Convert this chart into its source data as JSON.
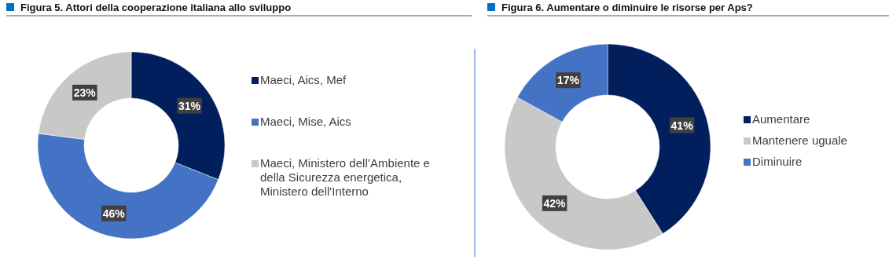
{
  "chart_data": [
    {
      "type": "donut",
      "title": "Figura 5. Attori della cooperazione italiana allo sviluppo",
      "categories": [
        "Maeci, Aics, Mef",
        "Maeci, Mise, Aics",
        "Maeci, Ministero dell’Ambiente e della Sicurezza energetica, Ministero dell'Interno"
      ],
      "values": [
        31,
        46,
        23
      ],
      "value_labels": [
        "31%",
        "46%",
        "23%"
      ],
      "colors": [
        "#001f5c",
        "#4472c4",
        "#c8c8c8"
      ],
      "legend": "right"
    },
    {
      "type": "donut",
      "title": "Figura 6. Aumentare o diminuire le risorse per Aps?",
      "categories": [
        "Aumentare",
        "Mantenere uguale",
        "Diminuire"
      ],
      "values": [
        41,
        42,
        17
      ],
      "value_labels": [
        "41%",
        "42%",
        "17%"
      ],
      "colors": [
        "#001f5c",
        "#c8c8c8",
        "#4472c4"
      ],
      "legend": "right"
    }
  ]
}
